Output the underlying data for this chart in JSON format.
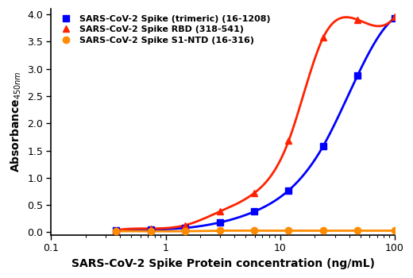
{
  "title": "",
  "xlabel": "SARS-CoV-2 Spike Protein concentration (ng/mL)",
  "ylabel": "Absorbance₁₄₅₀nm",
  "xlim": [
    0.1,
    100
  ],
  "ylim": [
    -0.05,
    4.1
  ],
  "series": [
    {
      "label": "SARS-CoV-2 Spike (trimeric) (16-1208)",
      "color": "#0000FF",
      "marker": "s",
      "x": [
        0.37,
        0.74,
        1.48,
        2.96,
        5.93,
        11.86,
        23.71,
        47.43,
        100.0
      ],
      "y": [
        0.04,
        0.05,
        0.08,
        0.18,
        0.38,
        0.77,
        1.58,
        2.88,
        3.93
      ]
    },
    {
      "label": "SARS-CoV-2 Spike RBD (318-541)",
      "color": "#FF2200",
      "marker": "^",
      "x": [
        0.37,
        0.74,
        1.48,
        2.96,
        5.93,
        11.86,
        23.71,
        47.43,
        100.0
      ],
      "y": [
        0.04,
        0.07,
        0.13,
        0.38,
        0.72,
        1.68,
        3.57,
        3.9,
        3.95
      ]
    },
    {
      "label": "SARS-CoV-2 Spike S1-NTD (16-316)",
      "color": "#FF8C00",
      "marker": "o",
      "x": [
        0.37,
        0.74,
        1.48,
        2.96,
        5.93,
        11.86,
        23.71,
        47.43,
        100.0
      ],
      "y": [
        0.02,
        0.02,
        0.02,
        0.03,
        0.03,
        0.03,
        0.03,
        0.03,
        0.03
      ]
    }
  ],
  "yticks": [
    0.0,
    0.5,
    1.0,
    1.5,
    2.0,
    2.5,
    3.0,
    3.5,
    4.0
  ],
  "xtick_labels": [
    "0.1",
    "1",
    "10",
    "100"
  ],
  "xtick_positions": [
    0.1,
    1,
    10,
    100
  ]
}
